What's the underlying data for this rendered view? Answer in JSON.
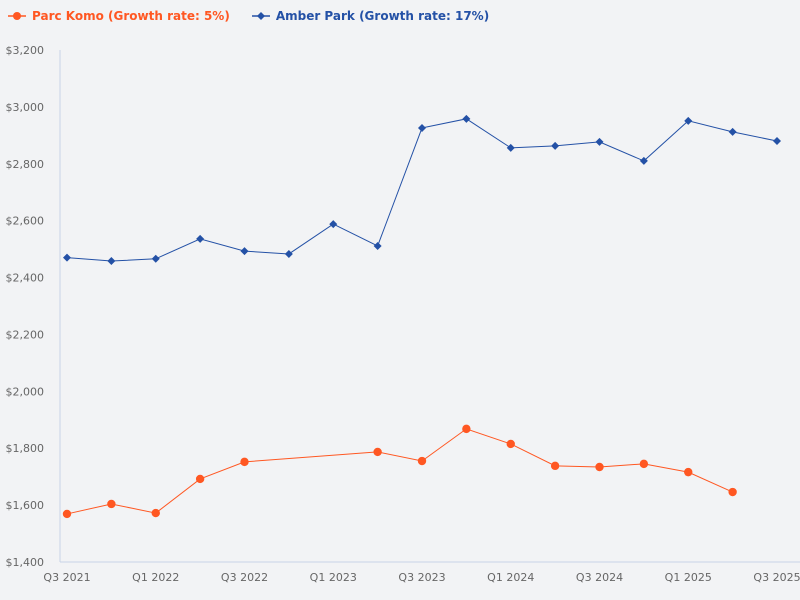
{
  "chart_data": {
    "type": "line",
    "categories": [
      "Q3 2021",
      "Q4 2021",
      "Q1 2022",
      "Q2 2022",
      "Q3 2022",
      "Q4 2022",
      "Q1 2023",
      "Q2 2023",
      "Q3 2023",
      "Q4 2023",
      "Q1 2024",
      "Q2 2024",
      "Q3 2024",
      "Q4 2024",
      "Q1 2025",
      "Q2 2025",
      "Q3 2025"
    ],
    "x_tick_labels": [
      "Q3 2021",
      "Q1 2022",
      "Q3 2022",
      "Q1 2023",
      "Q3 2023",
      "Q1 2024",
      "Q3 2024",
      "Q1 2025",
      "Q3 2025"
    ],
    "ylim": [
      1400,
      3200
    ],
    "y_ticks": [
      1400,
      1600,
      1800,
      2000,
      2200,
      2400,
      2600,
      2800,
      3000,
      3200
    ],
    "y_tick_labels": [
      "$1,400",
      "$1,600",
      "$1,800",
      "$2,000",
      "$2,200",
      "$2,400",
      "$2,600",
      "$2,800",
      "$3,000",
      "$3,200"
    ],
    "grid": false,
    "legend_position": "top-left",
    "series": [
      {
        "name": "Parc Komo (Growth rate: 5%)",
        "color": "#ff5722",
        "marker": "circle",
        "values": [
          1569,
          1604,
          1572,
          1692,
          1752,
          null,
          null,
          1787,
          1755,
          1868,
          1815,
          1738,
          1734,
          1745,
          1716,
          1646,
          null
        ]
      },
      {
        "name": "Amber Park (Growth rate: 17%)",
        "color": "#2451a6",
        "marker": "diamond",
        "values": [
          2470,
          2458,
          2466,
          2536,
          2493,
          2483,
          2588,
          2511,
          2926,
          2958,
          2856,
          2863,
          2877,
          2810,
          2951,
          2912,
          2880
        ]
      }
    ]
  }
}
